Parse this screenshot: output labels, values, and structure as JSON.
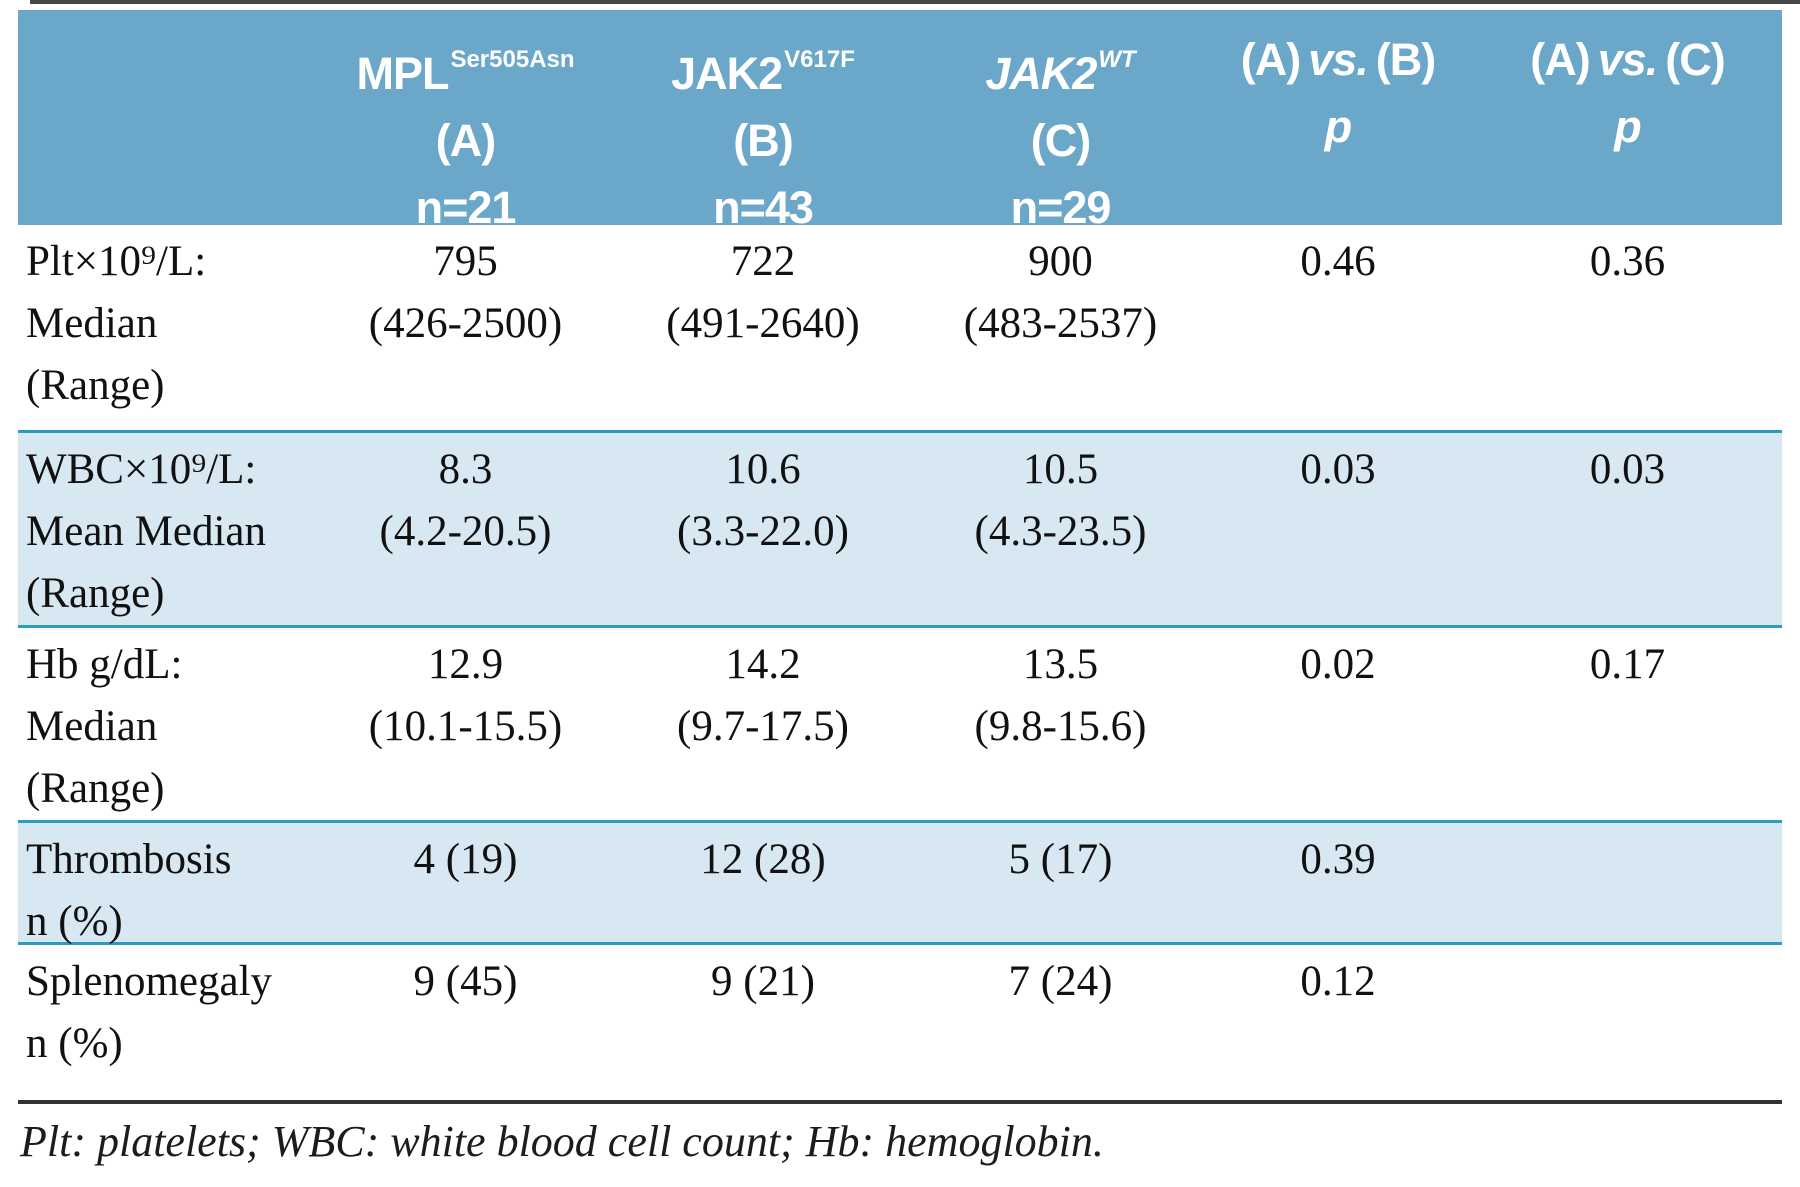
{
  "header": {
    "cols": [
      {
        "gene": "MPL",
        "sup": "Ser505Asn",
        "group": "(A)",
        "n": "n=21",
        "italic": false
      },
      {
        "gene": "JAK2",
        "sup": "V617F",
        "group": "(B)",
        "n": "n=43",
        "italic": false
      },
      {
        "gene": "JAK2",
        "sup": "WT",
        "group": "(C)",
        "n": "n=29",
        "italic": true
      }
    ],
    "pcols": [
      {
        "left": "(A)",
        "vs": "vs.",
        "right": "(B)",
        "p": "p"
      },
      {
        "left": "(A)",
        "vs": "vs.",
        "right": "(C)",
        "p": "p"
      }
    ]
  },
  "table": {
    "rows": [
      {
        "label": [
          "Plt×10⁹/L:",
          "Median",
          "(Range)"
        ],
        "a": [
          "795",
          "(426-2500)"
        ],
        "b": [
          "722",
          "(491-2640)"
        ],
        "c": [
          "900",
          "(483-2537)"
        ],
        "p_ab": "0.46",
        "p_ac": "0.36",
        "shaded": false
      },
      {
        "label": [
          "WBC×10⁹/L:",
          "Mean Median",
          "(Range)"
        ],
        "a": [
          "8.3",
          "(4.2-20.5)"
        ],
        "b": [
          "10.6",
          "(3.3-22.0)"
        ],
        "c": [
          "10.5",
          "(4.3-23.5)"
        ],
        "p_ab": "0.03",
        "p_ac": "0.03",
        "shaded": true
      },
      {
        "label": [
          "Hb g/dL:",
          "Median",
          "(Range)"
        ],
        "a": [
          "12.9",
          "(10.1-15.5)"
        ],
        "b": [
          "14.2",
          "(9.7-17.5)"
        ],
        "c": [
          "13.5",
          "(9.8-15.6)"
        ],
        "p_ab": "0.02",
        "p_ac": "0.17",
        "shaded": false
      },
      {
        "label": [
          "Thrombosis",
          "n (%)"
        ],
        "a": [
          "4 (19)"
        ],
        "b": [
          "12 (28)"
        ],
        "c": [
          "5 (17)"
        ],
        "p_ab": "0.39",
        "p_ac": "",
        "shaded": true
      },
      {
        "label": [
          "Splenomegaly",
          "n (%)"
        ],
        "a": [
          "9 (45)"
        ],
        "b": [
          "9 (21)"
        ],
        "c": [
          "7 (24)"
        ],
        "p_ab": "0.12",
        "p_ac": "",
        "shaded": false
      }
    ]
  },
  "footnote": "Plt: platelets; WBC: white blood cell count; Hb: hemoglobin.",
  "colors": {
    "header_bg": "#6BA7C8",
    "shaded_row_bg": "#D8E8F2",
    "teal_rule": "#2D9BBD",
    "text": "#111111",
    "header_text": "#FFFFFF"
  }
}
